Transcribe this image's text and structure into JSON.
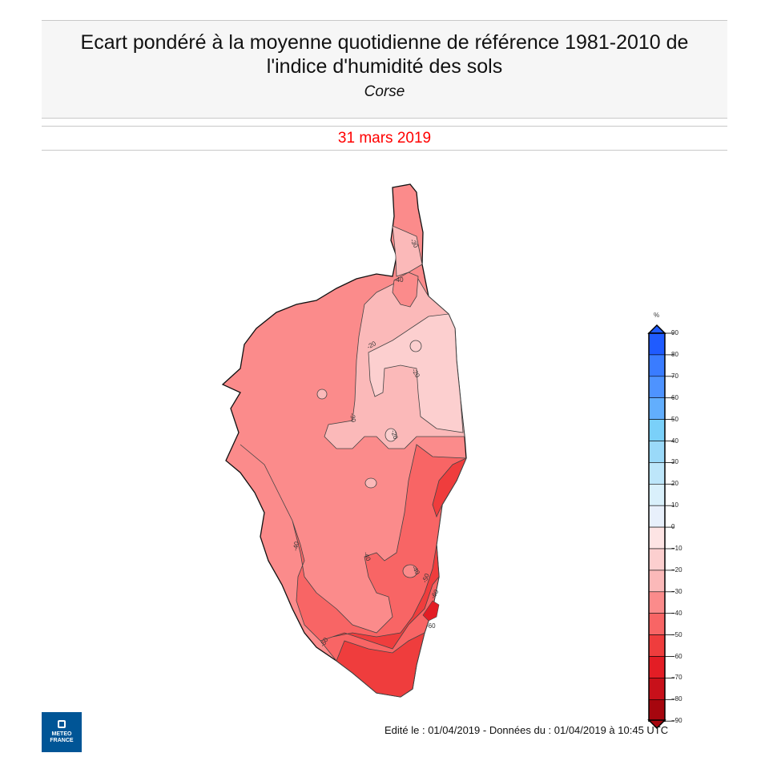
{
  "header": {
    "title": "Ecart pondéré à la moyenne quotidienne de référence 1981-2010 de l'indice d'humidité des sols",
    "region": "Corse",
    "date": "31 mars 2019"
  },
  "legend": {
    "unit": "%",
    "ticks": [
      "90",
      "80",
      "70",
      "60",
      "50",
      "40",
      "30",
      "20",
      "10",
      "0",
      "−10",
      "−20",
      "−30",
      "−40",
      "−50",
      "−60",
      "−70",
      "−80",
      "−90"
    ],
    "colors": [
      "#1f5bff",
      "#3a7cff",
      "#4e93ff",
      "#62aefd",
      "#7ad0f9",
      "#9ad9f9",
      "#bde6fa",
      "#d9f0fb",
      "#e8f0fb",
      "#fde4e4",
      "#fccfcf",
      "#fbb9b9",
      "#fb8b8b",
      "#f86565",
      "#ef3d3d",
      "#e31d25",
      "#c8101a",
      "#a6060e"
    ],
    "top_arrow_color": "#1f5bff",
    "bottom_arrow_color": "#a6060e"
  },
  "map": {
    "contour_labels": [
      "-30",
      "-40",
      "-20",
      "-20",
      "-30",
      "-20",
      "-40",
      "-40",
      "-40",
      "-50",
      "-60",
      "-60",
      "-50"
    ],
    "zone_colors": {
      "c10_20": "#fccfcf",
      "c20_30": "#fbb9b9",
      "c30_40": "#fb8b8b",
      "c40_50": "#f86565",
      "c50_60": "#ef3d3d",
      "c60_70": "#e31d25"
    }
  },
  "footer": {
    "text": "Edité le : 01/04/2019 - Données du : 01/04/2019 à 10:45 UTC"
  },
  "logo": {
    "line1": "METEO",
    "line2": "FRANCE"
  }
}
